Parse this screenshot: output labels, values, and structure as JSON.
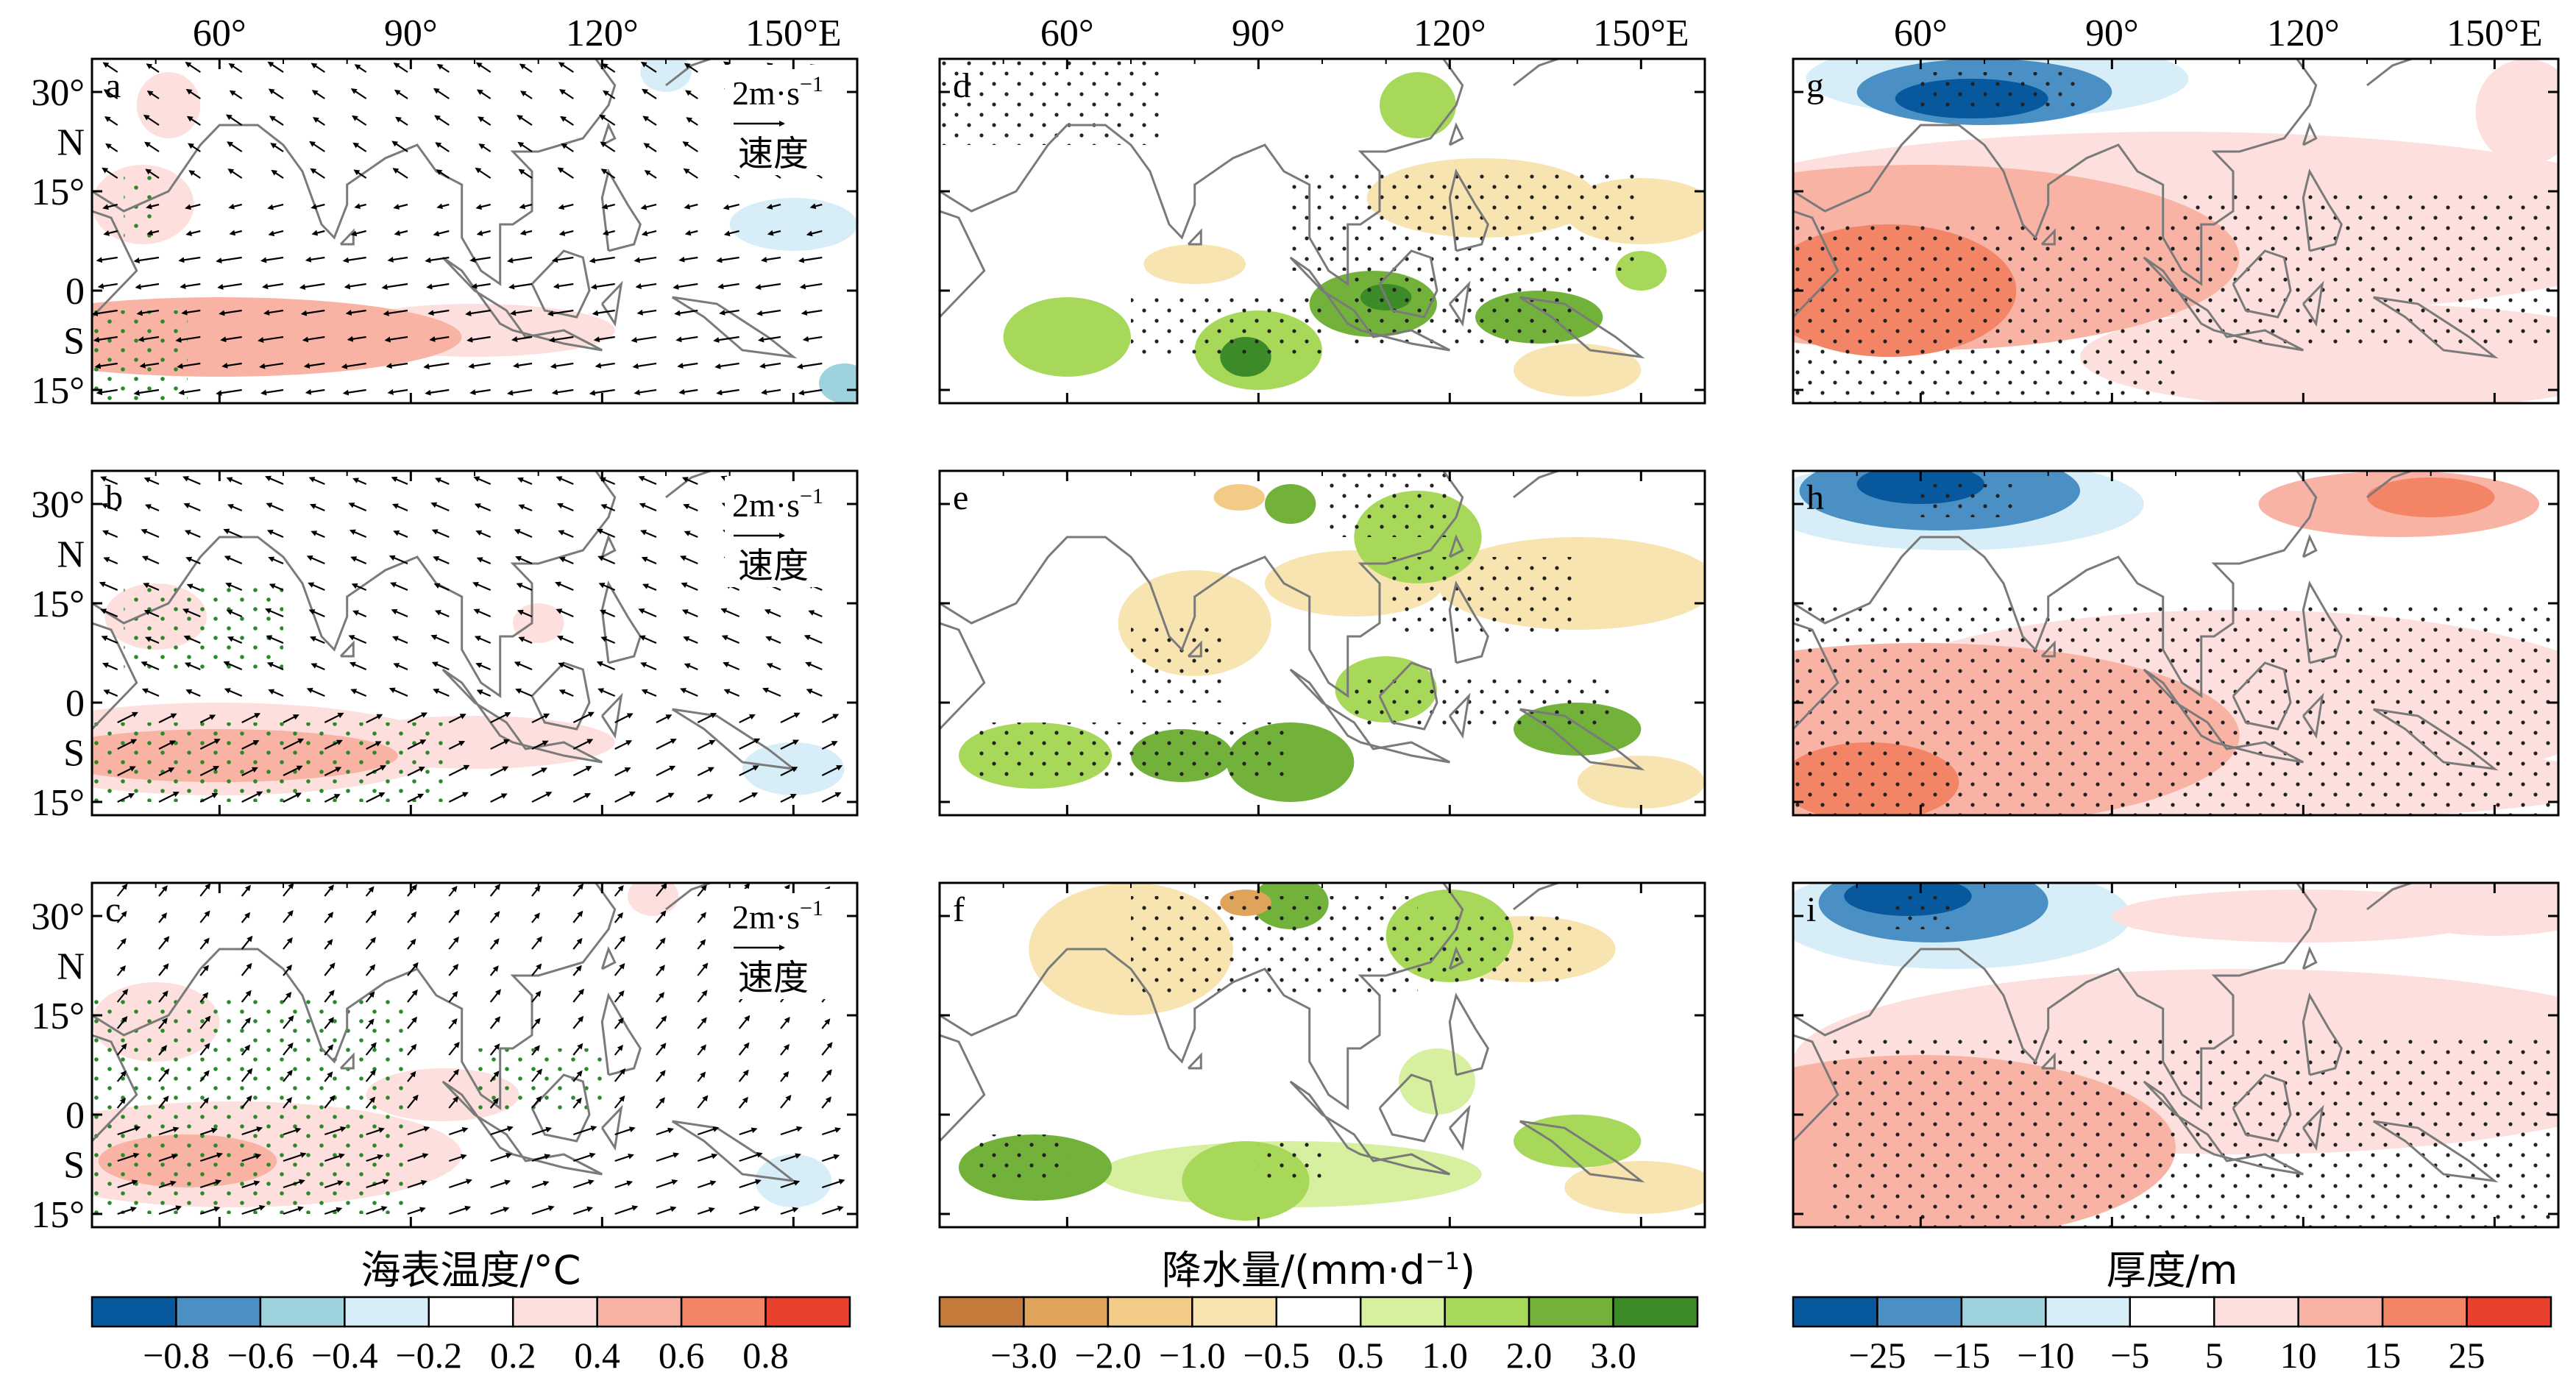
{
  "figure": {
    "xticks": [
      "60°",
      "90°",
      "120°",
      "150°E"
    ],
    "yticks": [
      "30°",
      "N",
      "15°",
      "0",
      "S",
      "15°"
    ],
    "ref_vector_label": "2m·s",
    "ref_vector_exp": "−1",
    "ref_vector_cn": "速度"
  },
  "panels": [
    {
      "label": "a",
      "field": "sst"
    },
    {
      "label": "d",
      "field": "precip"
    },
    {
      "label": "g",
      "field": "thick"
    },
    {
      "label": "b",
      "field": "sst"
    },
    {
      "label": "e",
      "field": "precip"
    },
    {
      "label": "h",
      "field": "thick"
    },
    {
      "label": "c",
      "field": "sst"
    },
    {
      "label": "f",
      "field": "precip"
    },
    {
      "label": "i",
      "field": "thick"
    }
  ],
  "colorbars": [
    {
      "title": "海表温度/°C",
      "colors": [
        "#08589e",
        "#4a90c4",
        "#9ed3de",
        "#d7eef8",
        "#ffffff",
        "#fde0dd",
        "#f9b3a5",
        "#f48466",
        "#e8412e"
      ],
      "labels": [
        "−0.8",
        "−0.6",
        "−0.4",
        "−0.2",
        "0.2",
        "0.4",
        "0.6",
        "0.8"
      ]
    },
    {
      "title": "降水量/(mm·d",
      "title_exp": "−1",
      "title_end": ")",
      "colors": [
        "#c47a3a",
        "#e0a35c",
        "#f2cc86",
        "#f8e4b0",
        "#ffffff",
        "#d6f0a0",
        "#a8d85a",
        "#72b23a",
        "#3c8a28"
      ],
      "labels": [
        "−3.0",
        "−2.0",
        "−1.0",
        "−0.5",
        "0.5",
        "1.0",
        "2.0",
        "3.0"
      ]
    },
    {
      "title": "厚度/m",
      "colors": [
        "#08589e",
        "#4a90c4",
        "#9ed3de",
        "#d7eef8",
        "#ffffff",
        "#fde0dd",
        "#f9b3a5",
        "#f48466",
        "#e8412e"
      ],
      "labels": [
        "−25",
        "−15",
        "−10",
        "−5",
        "5",
        "10",
        "15",
        "25"
      ]
    }
  ],
  "chart_data": {
    "type": "heatmap",
    "description_grid": "3x3 composite anomaly maps over 40°E–160°E, 17°S–35°N",
    "xlim": [
      40,
      160
    ],
    "ylim": [
      -17,
      35
    ],
    "columns": [
      {
        "panels": [
          "a",
          "b",
          "c"
        ],
        "variable": "海表温度/°C",
        "overlay": "wind vectors (速度, reference 2 m·s−1)"
      },
      {
        "panels": [
          "d",
          "e",
          "f"
        ],
        "variable": "降水量/(mm·d−1)"
      },
      {
        "panels": [
          "g",
          "h",
          "i"
        ],
        "variable": "厚度/m"
      }
    ],
    "sst_levels": [
      -0.8,
      -0.6,
      -0.4,
      -0.2,
      0.2,
      0.4,
      0.6,
      0.8
    ],
    "precip_levels": [
      -3.0,
      -2.0,
      -1.0,
      -0.5,
      0.5,
      1.0,
      2.0,
      3.0
    ],
    "thickness_levels": [
      -25,
      -15,
      -10,
      -5,
      5,
      10,
      15,
      25
    ]
  }
}
